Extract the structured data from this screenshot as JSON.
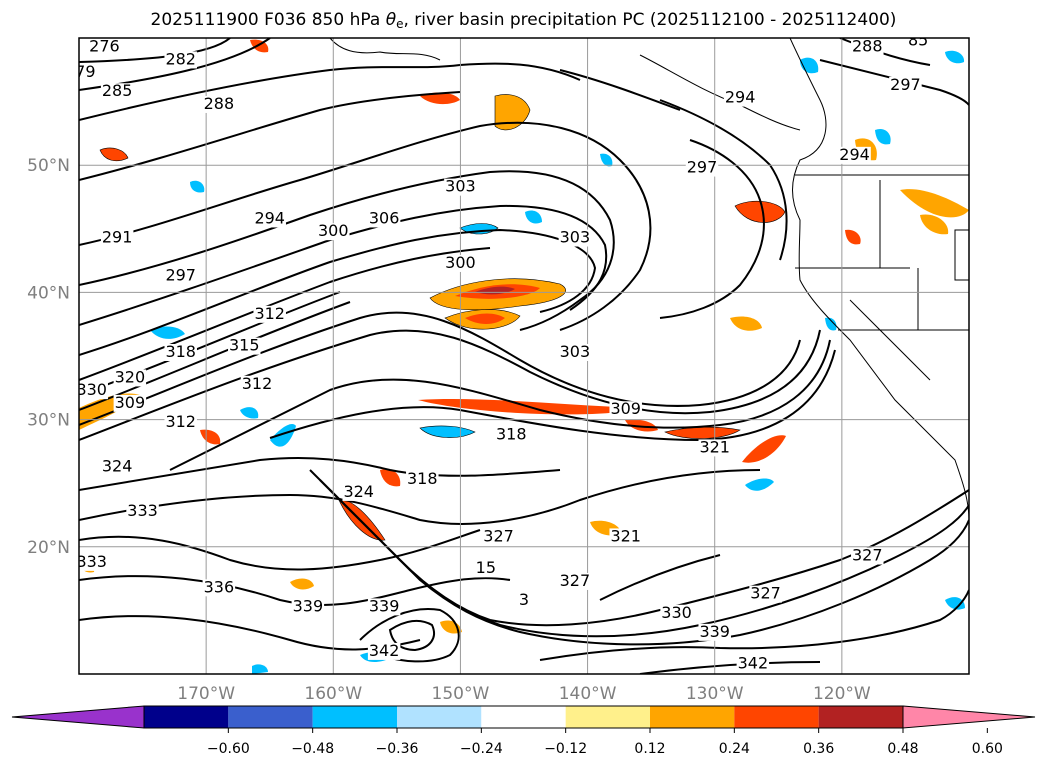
{
  "title": {
    "prefix": "2025111900 F036 850 hPa ",
    "theta": "θ",
    "sub": "e",
    "suffix": ", river basin precipitation PC (2025112100 - 2025112400)"
  },
  "map": {
    "projection": "plate-carree",
    "lon_range": [
      -180,
      -110
    ],
    "lat_range": [
      10,
      60
    ],
    "lat_ticks": [
      {
        "value": 50,
        "label": "50°N"
      },
      {
        "value": 40,
        "label": "40°N"
      },
      {
        "value": 30,
        "label": "30°N"
      },
      {
        "value": 20,
        "label": "20°N"
      }
    ],
    "lon_ticks": [
      {
        "value": -170,
        "label": "170°W"
      },
      {
        "value": -160,
        "label": "160°W"
      },
      {
        "value": -150,
        "label": "150°W"
      },
      {
        "value": -140,
        "label": "140°W"
      },
      {
        "value": -130,
        "label": "130°W"
      },
      {
        "value": -120,
        "label": "120°W"
      }
    ],
    "gridlines": true
  },
  "contour_labels": [
    {
      "text": "276",
      "lon": -178,
      "lat": 59
    },
    {
      "text": "79",
      "lon": -179.5,
      "lat": 57
    },
    {
      "text": "282",
      "lon": -172,
      "lat": 58
    },
    {
      "text": "285",
      "lon": -177,
      "lat": 55.5
    },
    {
      "text": "288",
      "lon": -169,
      "lat": 54.5
    },
    {
      "text": "291",
      "lon": -177,
      "lat": 44
    },
    {
      "text": "294",
      "lon": -165,
      "lat": 45.5
    },
    {
      "text": "297",
      "lon": -172,
      "lat": 41
    },
    {
      "text": "300",
      "lon": -160,
      "lat": 44.5
    },
    {
      "text": "306",
      "lon": -156,
      "lat": 45.5
    },
    {
      "text": "303",
      "lon": -150,
      "lat": 48
    },
    {
      "text": "303",
      "lon": -141,
      "lat": 44
    },
    {
      "text": "300",
      "lon": -150,
      "lat": 42
    },
    {
      "text": "297",
      "lon": -131,
      "lat": 49.5
    },
    {
      "text": "294",
      "lon": -128,
      "lat": 55
    },
    {
      "text": "294",
      "lon": -119,
      "lat": 50.5
    },
    {
      "text": "288",
      "lon": -118,
      "lat": 59
    },
    {
      "text": "85",
      "lon": -114,
      "lat": 59.5
    },
    {
      "text": "297",
      "lon": -115,
      "lat": 56
    },
    {
      "text": "303",
      "lon": -141,
      "lat": 35
    },
    {
      "text": "312",
      "lon": -165,
      "lat": 38
    },
    {
      "text": "315",
      "lon": -167,
      "lat": 35.5
    },
    {
      "text": "318",
      "lon": -172,
      "lat": 35
    },
    {
      "text": "320",
      "lon": -176,
      "lat": 33
    },
    {
      "text": "330",
      "lon": -179,
      "lat": 32
    },
    {
      "text": "309",
      "lon": -176,
      "lat": 31
    },
    {
      "text": "312",
      "lon": -166,
      "lat": 32.5
    },
    {
      "text": "312",
      "lon": -172,
      "lat": 29.5
    },
    {
      "text": "309",
      "lon": -137,
      "lat": 30.5
    },
    {
      "text": "318",
      "lon": -146,
      "lat": 28.5
    },
    {
      "text": "321",
      "lon": -130,
      "lat": 27.5
    },
    {
      "text": "324",
      "lon": -177,
      "lat": 26
    },
    {
      "text": "318",
      "lon": -153,
      "lat": 25
    },
    {
      "text": "324",
      "lon": -158,
      "lat": 24
    },
    {
      "text": "327",
      "lon": -147,
      "lat": 20.5
    },
    {
      "text": "321",
      "lon": -137,
      "lat": 20.5
    },
    {
      "text": "333",
      "lon": -175,
      "lat": 22.5
    },
    {
      "text": "333",
      "lon": -179,
      "lat": 18.5
    },
    {
      "text": "336",
      "lon": -169,
      "lat": 16.5
    },
    {
      "text": "339",
      "lon": -162,
      "lat": 15
    },
    {
      "text": "339",
      "lon": -156,
      "lat": 15
    },
    {
      "text": "327",
      "lon": -141,
      "lat": 17
    },
    {
      "text": "330",
      "lon": -133,
      "lat": 14.5
    },
    {
      "text": "327",
      "lon": -126,
      "lat": 16
    },
    {
      "text": "339",
      "lon": -130,
      "lat": 13
    },
    {
      "text": "342",
      "lon": -156,
      "lat": 11.5
    },
    {
      "text": "342",
      "lon": -127,
      "lat": 10.5
    },
    {
      "text": "3",
      "lon": -145,
      "lat": 15.5
    },
    {
      "text": "15",
      "lon": -148,
      "lat": 18
    },
    {
      "text": "327",
      "lon": -118,
      "lat": 19
    }
  ],
  "colorbar": {
    "colors": [
      "#9932cc",
      "#00008b",
      "#3a5fcd",
      "#00bfff",
      "#b0e2ff",
      "#ffffff",
      "#fff08b",
      "#ffa500",
      "#ff4500",
      "#b22222",
      "#ff86a8"
    ],
    "ticks": [
      "−0.60",
      "−0.48",
      "−0.36",
      "−0.24",
      "−0.12",
      "0.12",
      "0.24",
      "0.36",
      "0.48",
      "0.60"
    ]
  }
}
